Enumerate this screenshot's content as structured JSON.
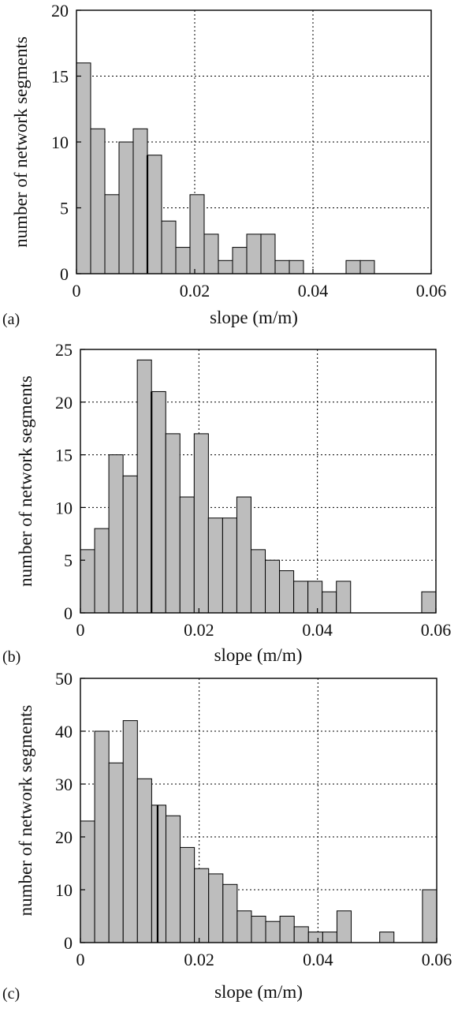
{
  "chart_data": [
    {
      "type": "bar",
      "panel_label": "(a)",
      "xlabel": "slope (m/m)",
      "ylabel": "number of network segments",
      "xlim": [
        0,
        0.06
      ],
      "ylim": [
        0,
        20
      ],
      "xticks": [
        "0",
        "0.02",
        "0.04",
        "0.06"
      ],
      "yticks": [
        "0",
        "5",
        "10",
        "15",
        "20"
      ],
      "grid": true,
      "bin_width": 0.0024,
      "reference_line_x": 0.012,
      "values": [
        16,
        11,
        6,
        10,
        11,
        9,
        4,
        2,
        6,
        3,
        1,
        2,
        3,
        3,
        1,
        1,
        0,
        0,
        0,
        1,
        1,
        0,
        0,
        0,
        0
      ]
    },
    {
      "type": "bar",
      "panel_label": "(b)",
      "xlabel": "slope (m/m)",
      "ylabel": "number of network segments",
      "xlim": [
        0,
        0.06
      ],
      "ylim": [
        0,
        25
      ],
      "xticks": [
        "0",
        "0.02",
        "0.04",
        "0.06"
      ],
      "yticks": [
        "0",
        "5",
        "10",
        "15",
        "20",
        "25"
      ],
      "grid": true,
      "bin_width": 0.0024,
      "reference_line_x": 0.012,
      "values": [
        6,
        8,
        15,
        13,
        24,
        21,
        17,
        11,
        17,
        9,
        9,
        11,
        6,
        5,
        4,
        3,
        3,
        2,
        3,
        0,
        0,
        0,
        0,
        0,
        2
      ]
    },
    {
      "type": "bar",
      "panel_label": "(c)",
      "xlabel": "slope (m/m)",
      "ylabel": "number of network segments",
      "xlim": [
        0,
        0.06
      ],
      "ylim": [
        0,
        50
      ],
      "xticks": [
        "0",
        "0.02",
        "0.04",
        "0.06"
      ],
      "yticks": [
        "0",
        "10",
        "20",
        "30",
        "40",
        "50"
      ],
      "grid": true,
      "bin_width": 0.0024,
      "reference_line_x": 0.013,
      "values": [
        23,
        40,
        34,
        42,
        31,
        26,
        24,
        18,
        14,
        13,
        11,
        6,
        5,
        4,
        5,
        3,
        2,
        2,
        6,
        0,
        0,
        2,
        0,
        0,
        10
      ]
    }
  ]
}
